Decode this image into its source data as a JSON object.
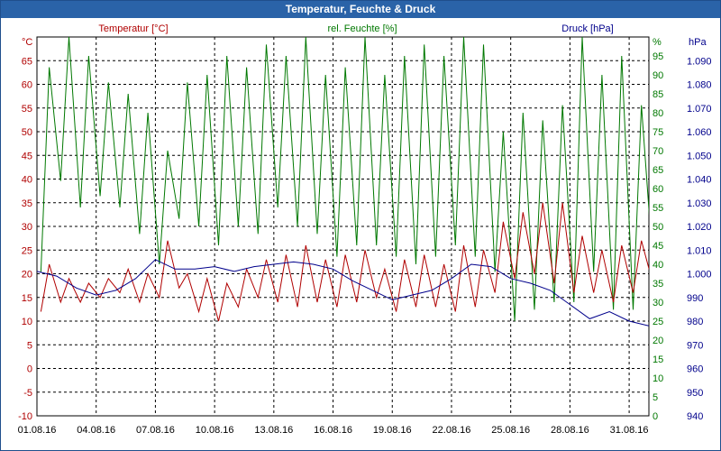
{
  "window": {
    "title": "Temperatur, Feuchte & Druck"
  },
  "colors": {
    "temperature": "#b00000",
    "humidity": "#007800",
    "pressure": "#00008b",
    "grid": "#000000",
    "titlebar": "#2a63a8"
  },
  "chart_data": {
    "type": "line",
    "title": "Temperatur, Feuchte & Druck",
    "grid": true,
    "x": {
      "ticks": [
        "01.08.16",
        "04.08.16",
        "07.08.16",
        "10.08.16",
        "13.08.16",
        "16.08.16",
        "19.08.16",
        "22.08.16",
        "25.08.16",
        "28.08.16",
        "31.08.16"
      ],
      "range": [
        "2016-08-01",
        "2016-09-01"
      ]
    },
    "axes": {
      "temperature": {
        "unit": "°C",
        "ticks": [
          -10,
          -5,
          0,
          5,
          10,
          15,
          20,
          25,
          30,
          35,
          40,
          45,
          50,
          55,
          60,
          65
        ],
        "range": [
          -10,
          70
        ]
      },
      "humidity": {
        "unit": "%",
        "ticks": [
          0,
          5,
          10,
          15,
          20,
          25,
          30,
          35,
          40,
          45,
          50,
          55,
          60,
          65,
          70,
          75,
          80,
          85,
          90,
          95
        ],
        "range": [
          0,
          100
        ]
      },
      "pressure": {
        "unit": "hPa",
        "ticks": [
          "940",
          "950",
          "960",
          "970",
          "980",
          "990",
          "1.000",
          "1.010",
          "1.020",
          "1.030",
          "1.040",
          "1.050",
          "1.060",
          "1.070",
          "1.080",
          "1.090"
        ],
        "range": [
          940,
          1100
        ]
      }
    },
    "series": [
      {
        "name": "Temperatur [°C]",
        "axis": "temperature",
        "x": [
          "2016-08-01",
          "2016-08-02",
          "2016-08-03",
          "2016-08-04",
          "2016-08-05",
          "2016-08-06",
          "2016-08-07",
          "2016-08-08",
          "2016-08-09",
          "2016-08-10",
          "2016-08-11",
          "2016-08-12",
          "2016-08-13",
          "2016-08-14",
          "2016-08-15",
          "2016-08-16",
          "2016-08-17",
          "2016-08-18",
          "2016-08-19",
          "2016-08-20",
          "2016-08-21",
          "2016-08-22",
          "2016-08-23",
          "2016-08-24",
          "2016-08-25",
          "2016-08-26",
          "2016-08-27",
          "2016-08-28",
          "2016-08-29",
          "2016-08-30",
          "2016-08-31",
          "2016-09-01"
        ],
        "min": [
          12,
          14,
          14,
          15,
          16,
          14,
          15,
          17,
          12,
          10,
          13,
          15,
          14,
          13,
          14,
          13,
          14,
          15,
          12,
          13,
          13,
          12,
          13,
          16,
          19,
          20,
          18,
          16,
          16,
          14,
          16,
          18
        ],
        "max": [
          22,
          19,
          18,
          19,
          21,
          20,
          27,
          20,
          19,
          18,
          21,
          23,
          24,
          26,
          23,
          24,
          25,
          21,
          23,
          24,
          22,
          26,
          25,
          31,
          33,
          35,
          35,
          28,
          25,
          26,
          27,
          24
        ]
      },
      {
        "name": "rel. Feuchte [%]",
        "axis": "humidity",
        "x": [
          "2016-08-01",
          "2016-08-02",
          "2016-08-03",
          "2016-08-04",
          "2016-08-05",
          "2016-08-06",
          "2016-08-07",
          "2016-08-08",
          "2016-08-09",
          "2016-08-10",
          "2016-08-11",
          "2016-08-12",
          "2016-08-13",
          "2016-08-14",
          "2016-08-15",
          "2016-08-16",
          "2016-08-17",
          "2016-08-18",
          "2016-08-19",
          "2016-08-20",
          "2016-08-21",
          "2016-08-22",
          "2016-08-23",
          "2016-08-24",
          "2016-08-25",
          "2016-08-26",
          "2016-08-27",
          "2016-08-28",
          "2016-08-29",
          "2016-08-30",
          "2016-08-31",
          "2016-09-01"
        ],
        "min": [
          38,
          62,
          55,
          58,
          55,
          48,
          40,
          52,
          50,
          45,
          50,
          48,
          55,
          50,
          48,
          42,
          45,
          45,
          42,
          40,
          42,
          45,
          42,
          38,
          25,
          28,
          30,
          30,
          38,
          28,
          28,
          40
        ],
        "max": [
          92,
          100,
          95,
          88,
          85,
          80,
          70,
          88,
          90,
          95,
          92,
          98,
          95,
          100,
          90,
          92,
          100,
          90,
          95,
          98,
          95,
          100,
          98,
          75,
          80,
          78,
          82,
          100,
          90,
          95,
          82,
          75
        ]
      },
      {
        "name": "Druck [hPa]",
        "axis": "pressure",
        "x": [
          "2016-08-01",
          "2016-08-02",
          "2016-08-03",
          "2016-08-04",
          "2016-08-05",
          "2016-08-06",
          "2016-08-07",
          "2016-08-08",
          "2016-08-09",
          "2016-08-10",
          "2016-08-11",
          "2016-08-12",
          "2016-08-13",
          "2016-08-14",
          "2016-08-15",
          "2016-08-16",
          "2016-08-17",
          "2016-08-18",
          "2016-08-19",
          "2016-08-20",
          "2016-08-21",
          "2016-08-22",
          "2016-08-23",
          "2016-08-24",
          "2016-08-25",
          "2016-08-26",
          "2016-08-27",
          "2016-08-28",
          "2016-08-29",
          "2016-08-30",
          "2016-08-31",
          "2016-09-01"
        ],
        "values": [
          1001,
          999,
          994,
          991,
          993,
          998,
          1006,
          1002,
          1002,
          1003,
          1001,
          1003,
          1004,
          1005,
          1004,
          1002,
          997,
          993,
          989,
          991,
          993,
          998,
          1004,
          1003,
          998,
          996,
          993,
          987,
          981,
          984,
          980,
          978
        ]
      }
    ]
  }
}
